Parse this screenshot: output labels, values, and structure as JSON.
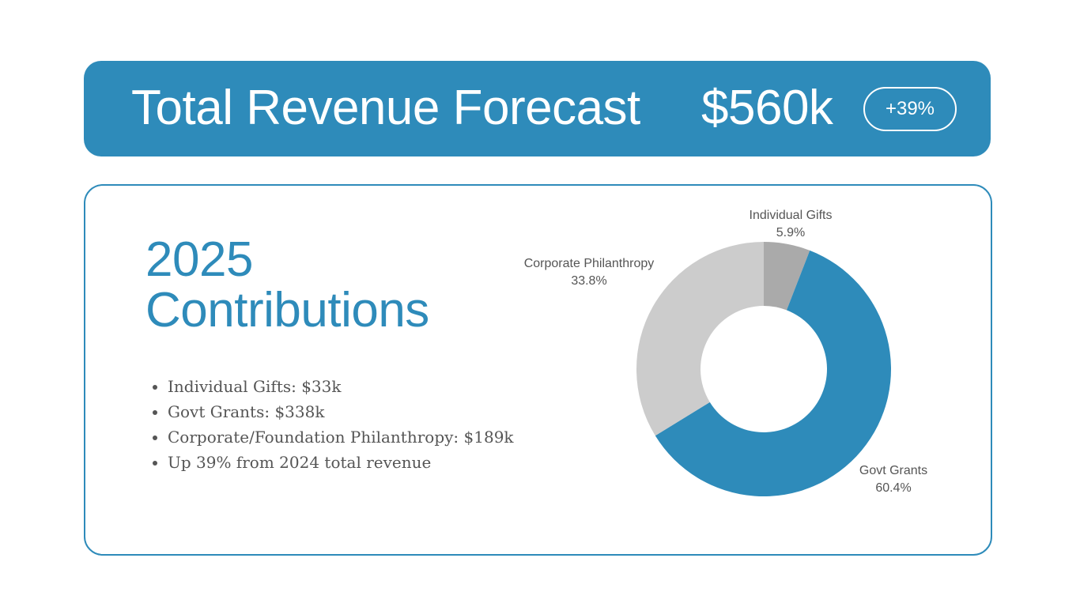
{
  "header": {
    "title": "Total Revenue Forecast",
    "total": "$560k",
    "badge": "+39%",
    "color": "#2e8bba"
  },
  "card": {
    "heading_line1": "2025",
    "heading_line2": "Contributions",
    "bullets": [
      "Individual Gifts: $33k",
      "Govt Grants: $338k",
      "Corporate/Foundation Philanthropy: $189k",
      "Up 39% from 2024 total revenue"
    ]
  },
  "chart_data": {
    "type": "pie",
    "variant": "donut",
    "title": "",
    "categories": [
      "Individual Gifts",
      "Govt Grants",
      "Corporate Philanthropy"
    ],
    "values": [
      5.9,
      60.4,
      33.8
    ],
    "labels": [
      "5.9%",
      "60.4%",
      "33.8%"
    ],
    "colors": [
      "#aaaaaa",
      "#2e8bba",
      "#cccccc"
    ],
    "start_angle_deg": 0,
    "direction": "clockwise"
  }
}
